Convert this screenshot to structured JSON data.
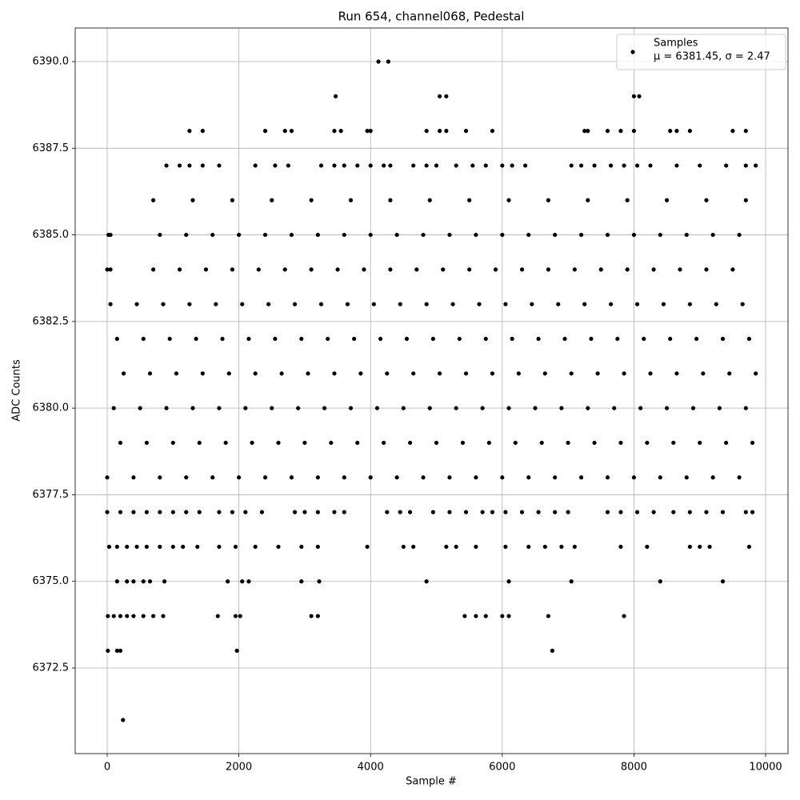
{
  "chart_data": {
    "type": "scatter",
    "title": "Run 654, channel068, Pedestal",
    "x_label": "Sample #",
    "y_label": "ADC Counts",
    "legend_note": "μ = 6381.45, σ = 2.47",
    "legend": "upper right",
    "grid": true,
    "xlim": [
      -486,
      10340
    ],
    "ylim": [
      6370.03,
      6390.97
    ],
    "xticks": [
      0,
      2000,
      4000,
      6000,
      8000,
      10000
    ],
    "yticks": [
      6372.5,
      {
        "value": 6375,
        "label": "6375.0"
      },
      6377.5,
      {
        "value": 6380,
        "label": "6380.0"
      },
      6382.5,
      {
        "value": 6385,
        "label": "6385.0"
      },
      6387.5,
      {
        "value": 6390,
        "label": "6390.0"
      }
    ],
    "series": [
      {
        "name": "Samples",
        "color": "#000000",
        "x": [
          240,
          10,
          150,
          200,
          1970,
          6760,
          10,
          100,
          200,
          300,
          400,
          550,
          700,
          850,
          1680,
          1950,
          2020,
          3100,
          3200,
          5430,
          5600,
          5750,
          6000,
          6100,
          6700,
          7850,
          150,
          300,
          400,
          550,
          650,
          870,
          1830,
          2050,
          2150,
          2950,
          3220,
          4850,
          6100,
          7050,
          8400,
          9350,
          30,
          150,
          300,
          450,
          600,
          800,
          1000,
          1150,
          1370,
          1700,
          1950,
          2250,
          2600,
          2950,
          3200,
          3950,
          4500,
          4650,
          5150,
          5300,
          5600,
          6050,
          6400,
          6650,
          6900,
          7100,
          7800,
          8200,
          8850,
          9000,
          9150,
          9750,
          0,
          200,
          400,
          600,
          800,
          1000,
          1200,
          1400,
          1700,
          1900,
          2100,
          2350,
          2850,
          3000,
          3200,
          3450,
          3600,
          4250,
          4450,
          4600,
          4950,
          5200,
          5450,
          5700,
          5850,
          6050,
          6300,
          6550,
          6800,
          7000,
          7600,
          7800,
          8050,
          8300,
          8600,
          8850,
          9100,
          9350,
          9700,
          9800,
          0,
          400,
          800,
          1200,
          1600,
          2000,
          2400,
          2800,
          3200,
          3600,
          4000,
          4400,
          4800,
          5200,
          5600,
          6000,
          6400,
          6800,
          7200,
          7600,
          8000,
          8400,
          8800,
          9200,
          9600,
          200,
          600,
          1000,
          1400,
          1800,
          2200,
          2600,
          3000,
          3400,
          3800,
          4200,
          4600,
          5000,
          5400,
          5800,
          6200,
          6600,
          7000,
          7400,
          7800,
          8200,
          8600,
          9000,
          9400,
          9800,
          100,
          500,
          900,
          1300,
          1700,
          2100,
          2500,
          2900,
          3300,
          3700,
          4100,
          4500,
          4900,
          5300,
          5700,
          6100,
          6500,
          6900,
          7300,
          7700,
          8100,
          8500,
          8900,
          9300,
          9700,
          250,
          650,
          1050,
          1450,
          1850,
          2250,
          2650,
          3050,
          3450,
          3850,
          4250,
          4650,
          5050,
          5450,
          5850,
          6250,
          6650,
          7050,
          7450,
          7850,
          8250,
          8650,
          9050,
          9450,
          9850,
          150,
          550,
          950,
          1350,
          1750,
          2150,
          2550,
          2950,
          3350,
          3750,
          4150,
          4550,
          4950,
          5350,
          5750,
          6150,
          6550,
          6950,
          7350,
          7750,
          8150,
          8550,
          8950,
          9350,
          9750,
          50,
          450,
          850,
          1250,
          1650,
          2050,
          2450,
          2850,
          3250,
          3650,
          4050,
          4450,
          4850,
          5250,
          5650,
          6050,
          6450,
          6850,
          7250,
          7650,
          8050,
          8450,
          8850,
          9250,
          9650,
          0,
          50,
          700,
          1100,
          1500,
          1900,
          2300,
          2700,
          3100,
          3500,
          3900,
          4300,
          4700,
          5100,
          5500,
          5900,
          6300,
          6700,
          7100,
          7500,
          7900,
          8300,
          8700,
          9100,
          9500,
          20,
          50,
          800,
          1200,
          1600,
          2000,
          2400,
          2800,
          3200,
          3600,
          4000,
          4400,
          4800,
          5200,
          5600,
          6000,
          6400,
          6800,
          7200,
          7600,
          8000,
          8400,
          8800,
          9200,
          9600,
          700,
          1300,
          1900,
          2500,
          3100,
          3700,
          4300,
          4900,
          5500,
          6100,
          6700,
          7300,
          7900,
          8500,
          9100,
          9700,
          900,
          1100,
          1250,
          1450,
          1700,
          2250,
          2550,
          2750,
          3250,
          3450,
          3600,
          3800,
          4000,
          4200,
          4300,
          4650,
          4850,
          5000,
          5300,
          5550,
          5750,
          6000,
          6150,
          6350,
          7050,
          7200,
          7400,
          7650,
          7850,
          8050,
          8250,
          8650,
          9000,
          9400,
          9700,
          9850,
          1250,
          1450,
          2400,
          2700,
          2800,
          3450,
          3550,
          3950,
          4000,
          4850,
          5050,
          5150,
          5450,
          5850,
          7250,
          7300,
          7600,
          7800,
          8000,
          8550,
          8650,
          8850,
          9500,
          9700,
          3470,
          5050,
          5150,
          8000,
          8080,
          4120,
          4270
        ],
        "values": [
          6371,
          6373,
          6373,
          6373,
          6373,
          6373,
          6374,
          6374,
          6374,
          6374,
          6374,
          6374,
          6374,
          6374,
          6374,
          6374,
          6374,
          6374,
          6374,
          6374,
          6374,
          6374,
          6374,
          6374,
          6374,
          6374,
          6375,
          6375,
          6375,
          6375,
          6375,
          6375,
          6375,
          6375,
          6375,
          6375,
          6375,
          6375,
          6375,
          6375,
          6375,
          6375,
          6376,
          6376,
          6376,
          6376,
          6376,
          6376,
          6376,
          6376,
          6376,
          6376,
          6376,
          6376,
          6376,
          6376,
          6376,
          6376,
          6376,
          6376,
          6376,
          6376,
          6376,
          6376,
          6376,
          6376,
          6376,
          6376,
          6376,
          6376,
          6376,
          6376,
          6376,
          6376,
          6377,
          6377,
          6377,
          6377,
          6377,
          6377,
          6377,
          6377,
          6377,
          6377,
          6377,
          6377,
          6377,
          6377,
          6377,
          6377,
          6377,
          6377,
          6377,
          6377,
          6377,
          6377,
          6377,
          6377,
          6377,
          6377,
          6377,
          6377,
          6377,
          6377,
          6377,
          6377,
          6377,
          6377,
          6377,
          6377,
          6377,
          6377,
          6377,
          6377,
          6378,
          6378,
          6378,
          6378,
          6378,
          6378,
          6378,
          6378,
          6378,
          6378,
          6378,
          6378,
          6378,
          6378,
          6378,
          6378,
          6378,
          6378,
          6378,
          6378,
          6378,
          6378,
          6378,
          6378,
          6378,
          6379,
          6379,
          6379,
          6379,
          6379,
          6379,
          6379,
          6379,
          6379,
          6379,
          6379,
          6379,
          6379,
          6379,
          6379,
          6379,
          6379,
          6379,
          6379,
          6379,
          6379,
          6379,
          6379,
          6379,
          6379,
          6380,
          6380,
          6380,
          6380,
          6380,
          6380,
          6380,
          6380,
          6380,
          6380,
          6380,
          6380,
          6380,
          6380,
          6380,
          6380,
          6380,
          6380,
          6380,
          6380,
          6380,
          6380,
          6380,
          6380,
          6380,
          6381,
          6381,
          6381,
          6381,
          6381,
          6381,
          6381,
          6381,
          6381,
          6381,
          6381,
          6381,
          6381,
          6381,
          6381,
          6381,
          6381,
          6381,
          6381,
          6381,
          6381,
          6381,
          6381,
          6381,
          6381,
          6382,
          6382,
          6382,
          6382,
          6382,
          6382,
          6382,
          6382,
          6382,
          6382,
          6382,
          6382,
          6382,
          6382,
          6382,
          6382,
          6382,
          6382,
          6382,
          6382,
          6382,
          6382,
          6382,
          6382,
          6382,
          6383,
          6383,
          6383,
          6383,
          6383,
          6383,
          6383,
          6383,
          6383,
          6383,
          6383,
          6383,
          6383,
          6383,
          6383,
          6383,
          6383,
          6383,
          6383,
          6383,
          6383,
          6383,
          6383,
          6383,
          6383,
          6384,
          6384,
          6384,
          6384,
          6384,
          6384,
          6384,
          6384,
          6384,
          6384,
          6384,
          6384,
          6384,
          6384,
          6384,
          6384,
          6384,
          6384,
          6384,
          6384,
          6384,
          6384,
          6384,
          6384,
          6384,
          6385,
          6385,
          6385,
          6385,
          6385,
          6385,
          6385,
          6385,
          6385,
          6385,
          6385,
          6385,
          6385,
          6385,
          6385,
          6385,
          6385,
          6385,
          6385,
          6385,
          6385,
          6385,
          6385,
          6385,
          6385,
          6386,
          6386,
          6386,
          6386,
          6386,
          6386,
          6386,
          6386,
          6386,
          6386,
          6386,
          6386,
          6386,
          6386,
          6386,
          6386,
          6387,
          6387,
          6387,
          6387,
          6387,
          6387,
          6387,
          6387,
          6387,
          6387,
          6387,
          6387,
          6387,
          6387,
          6387,
          6387,
          6387,
          6387,
          6387,
          6387,
          6387,
          6387,
          6387,
          6387,
          6387,
          6387,
          6387,
          6387,
          6387,
          6387,
          6387,
          6387,
          6387,
          6387,
          6387,
          6387,
          6388,
          6388,
          6388,
          6388,
          6388,
          6388,
          6388,
          6388,
          6388,
          6388,
          6388,
          6388,
          6388,
          6388,
          6388,
          6388,
          6388,
          6388,
          6388,
          6388,
          6388,
          6388,
          6388,
          6388,
          6389,
          6389,
          6389,
          6389,
          6389,
          6390,
          6390
        ]
      }
    ]
  }
}
